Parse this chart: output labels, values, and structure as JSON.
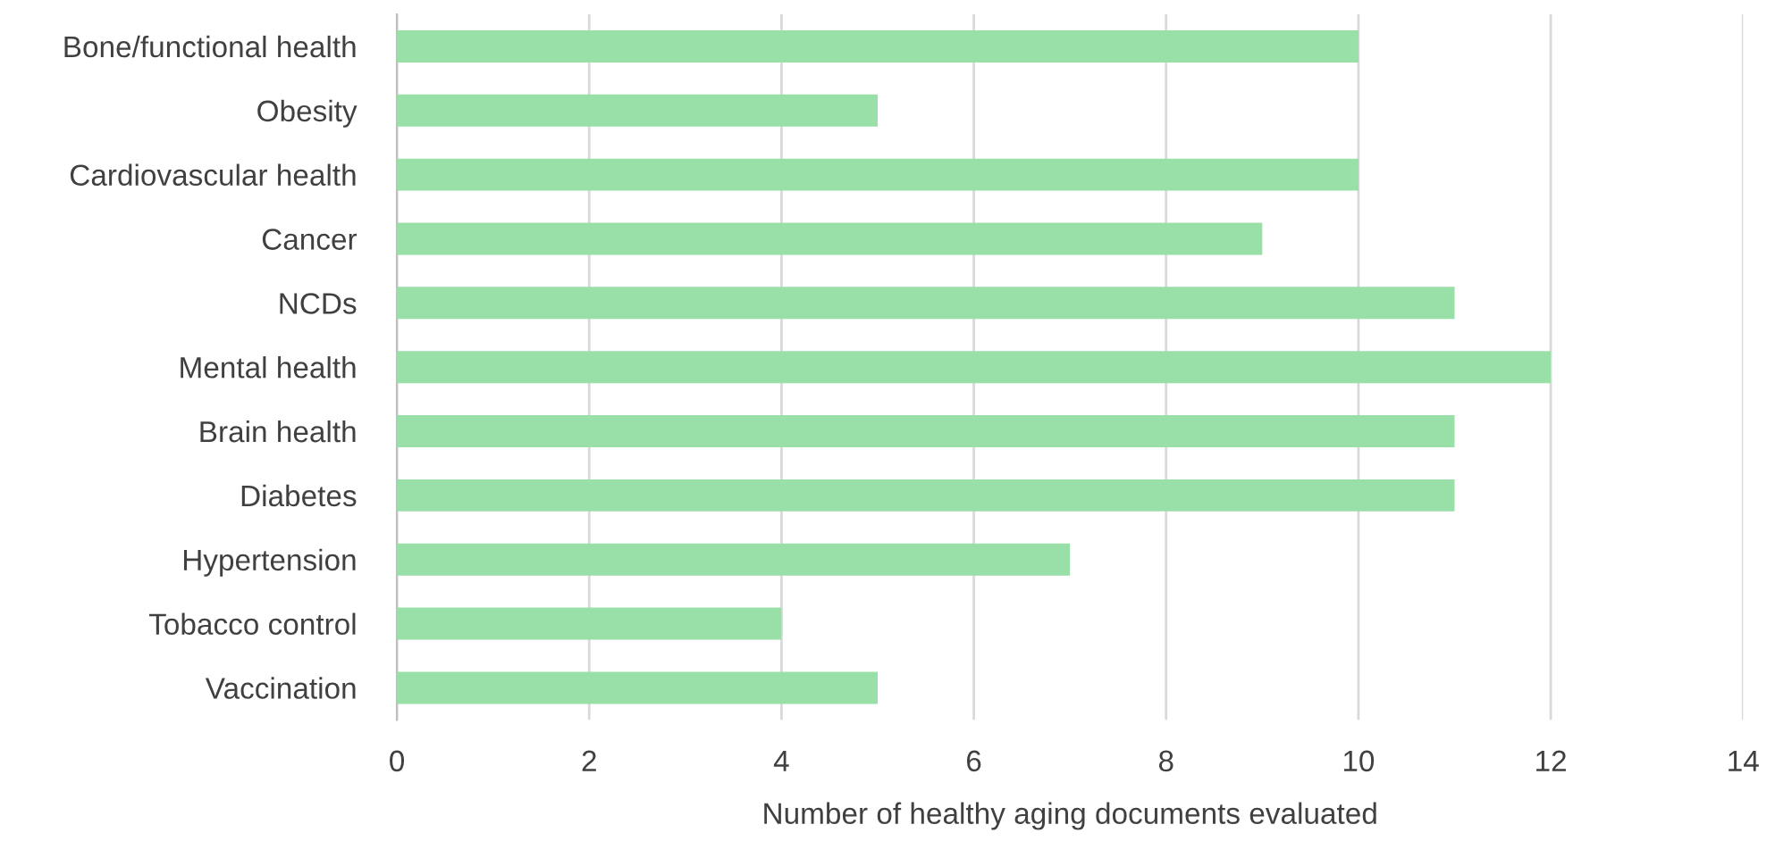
{
  "chart_data": {
    "type": "bar",
    "orientation": "horizontal",
    "categories": [
      "Bone/functional health",
      "Obesity",
      "Cardiovascular health",
      "Cancer",
      "NCDs",
      "Mental health",
      "Brain health",
      "Diabetes",
      "Hypertension",
      "Tobacco control",
      "Vaccination"
    ],
    "values": [
      10,
      5,
      10,
      9,
      11,
      12,
      11,
      11,
      7,
      4,
      5
    ],
    "color": "#99dfa8",
    "xlim": [
      0,
      14
    ],
    "xticks": [
      0,
      2,
      4,
      6,
      8,
      10,
      12,
      14
    ],
    "xlabel": "Number of healthy aging documents evaluated",
    "grid": "x"
  }
}
